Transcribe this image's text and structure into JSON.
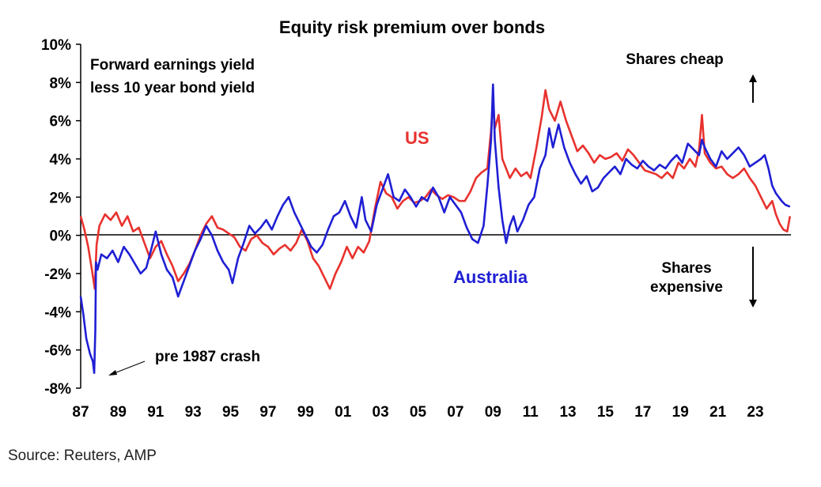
{
  "chart_data": {
    "type": "line",
    "title": "Equity risk premium over bonds",
    "subtitle_lines": [
      "Forward earnings yield",
      "less 10 year bond yield"
    ],
    "ylim": [
      -8,
      10
    ],
    "y_ticks": [
      -8,
      -6,
      -4,
      -2,
      0,
      2,
      4,
      6,
      8,
      10
    ],
    "y_tick_labels": [
      "-8%",
      "-6%",
      "-4%",
      "-2%",
      "0%",
      "2%",
      "4%",
      "6%",
      "8%",
      "10%"
    ],
    "xlim": [
      1987,
      2024.9
    ],
    "x_ticks": [
      1987,
      1989,
      1991,
      1993,
      1995,
      1997,
      1999,
      2001,
      2003,
      2005,
      2007,
      2009,
      2011,
      2013,
      2015,
      2017,
      2019,
      2021,
      2023
    ],
    "x_tick_labels": [
      "87",
      "89",
      "91",
      "93",
      "95",
      "97",
      "99",
      "01",
      "03",
      "05",
      "07",
      "09",
      "11",
      "13",
      "15",
      "17",
      "19",
      "21",
      "23"
    ],
    "grid": false,
    "series": [
      {
        "name": "US",
        "color": "#e8322e",
        "points": [
          [
            1987.0,
            1.0
          ],
          [
            1987.2,
            0.3
          ],
          [
            1987.4,
            -0.6
          ],
          [
            1987.6,
            -1.8
          ],
          [
            1987.75,
            -2.8
          ],
          [
            1987.85,
            -0.5
          ],
          [
            1988.0,
            0.5
          ],
          [
            1988.3,
            1.1
          ],
          [
            1988.6,
            0.8
          ],
          [
            1988.9,
            1.2
          ],
          [
            1989.2,
            0.5
          ],
          [
            1989.5,
            1.0
          ],
          [
            1989.8,
            0.2
          ],
          [
            1990.1,
            0.4
          ],
          [
            1990.4,
            -0.4
          ],
          [
            1990.7,
            -1.2
          ],
          [
            1991.0,
            -0.6
          ],
          [
            1991.3,
            -0.3
          ],
          [
            1991.6,
            -1.0
          ],
          [
            1991.9,
            -1.6
          ],
          [
            1992.2,
            -2.4
          ],
          [
            1992.5,
            -2.0
          ],
          [
            1992.8,
            -1.5
          ],
          [
            1993.1,
            -0.8
          ],
          [
            1993.4,
            0.0
          ],
          [
            1993.7,
            0.6
          ],
          [
            1994.0,
            1.0
          ],
          [
            1994.3,
            0.4
          ],
          [
            1994.6,
            0.3
          ],
          [
            1994.9,
            0.1
          ],
          [
            1995.2,
            -0.1
          ],
          [
            1995.5,
            -0.6
          ],
          [
            1995.8,
            -0.8
          ],
          [
            1996.1,
            -0.2
          ],
          [
            1996.4,
            0.0
          ],
          [
            1996.7,
            -0.4
          ],
          [
            1997.0,
            -0.6
          ],
          [
            1997.3,
            -1.0
          ],
          [
            1997.6,
            -0.7
          ],
          [
            1997.9,
            -0.5
          ],
          [
            1998.2,
            -0.8
          ],
          [
            1998.5,
            -0.4
          ],
          [
            1998.8,
            0.3
          ],
          [
            1999.1,
            -0.3
          ],
          [
            1999.4,
            -1.2
          ],
          [
            1999.7,
            -1.6
          ],
          [
            2000.0,
            -2.2
          ],
          [
            2000.3,
            -2.8
          ],
          [
            2000.6,
            -2.0
          ],
          [
            2000.9,
            -1.4
          ],
          [
            2001.2,
            -0.6
          ],
          [
            2001.5,
            -1.2
          ],
          [
            2001.8,
            -0.6
          ],
          [
            2002.1,
            -0.9
          ],
          [
            2002.4,
            -0.3
          ],
          [
            2002.7,
            1.4
          ],
          [
            2003.0,
            2.8
          ],
          [
            2003.3,
            2.2
          ],
          [
            2003.6,
            2.0
          ],
          [
            2003.9,
            1.4
          ],
          [
            2004.2,
            1.8
          ],
          [
            2004.5,
            2.0
          ],
          [
            2004.8,
            1.7
          ],
          [
            2005.1,
            1.8
          ],
          [
            2005.4,
            2.0
          ],
          [
            2005.7,
            2.4
          ],
          [
            2006.0,
            2.1
          ],
          [
            2006.3,
            1.9
          ],
          [
            2006.6,
            2.1
          ],
          [
            2006.9,
            2.0
          ],
          [
            2007.2,
            1.8
          ],
          [
            2007.5,
            1.8
          ],
          [
            2007.8,
            2.3
          ],
          [
            2008.1,
            3.0
          ],
          [
            2008.4,
            3.3
          ],
          [
            2008.7,
            3.5
          ],
          [
            2008.9,
            5.5
          ],
          [
            2009.0,
            7.2
          ],
          [
            2009.1,
            5.6
          ],
          [
            2009.3,
            6.3
          ],
          [
            2009.5,
            4.0
          ],
          [
            2009.7,
            3.5
          ],
          [
            2009.9,
            3.0
          ],
          [
            2010.2,
            3.5
          ],
          [
            2010.5,
            3.1
          ],
          [
            2010.8,
            3.3
          ],
          [
            2011.0,
            3.0
          ],
          [
            2011.3,
            4.5
          ],
          [
            2011.6,
            6.2
          ],
          [
            2011.8,
            7.6
          ],
          [
            2012.0,
            6.6
          ],
          [
            2012.3,
            6.0
          ],
          [
            2012.6,
            7.0
          ],
          [
            2012.9,
            6.0
          ],
          [
            2013.2,
            5.2
          ],
          [
            2013.5,
            4.4
          ],
          [
            2013.8,
            4.7
          ],
          [
            2014.1,
            4.3
          ],
          [
            2014.4,
            3.8
          ],
          [
            2014.7,
            4.2
          ],
          [
            2015.0,
            4.0
          ],
          [
            2015.3,
            4.1
          ],
          [
            2015.6,
            4.3
          ],
          [
            2015.9,
            3.9
          ],
          [
            2016.2,
            4.5
          ],
          [
            2016.5,
            4.2
          ],
          [
            2016.8,
            3.8
          ],
          [
            2017.1,
            3.4
          ],
          [
            2017.4,
            3.3
          ],
          [
            2017.7,
            3.2
          ],
          [
            2018.0,
            3.0
          ],
          [
            2018.3,
            3.3
          ],
          [
            2018.6,
            3.0
          ],
          [
            2018.9,
            3.8
          ],
          [
            2019.2,
            3.5
          ],
          [
            2019.5,
            4.0
          ],
          [
            2019.8,
            3.6
          ],
          [
            2020.0,
            4.5
          ],
          [
            2020.15,
            6.3
          ],
          [
            2020.3,
            4.3
          ],
          [
            2020.6,
            3.8
          ],
          [
            2020.9,
            3.5
          ],
          [
            2021.2,
            3.6
          ],
          [
            2021.5,
            3.2
          ],
          [
            2021.8,
            3.0
          ],
          [
            2022.1,
            3.2
          ],
          [
            2022.4,
            3.5
          ],
          [
            2022.7,
            3.0
          ],
          [
            2023.0,
            2.6
          ],
          [
            2023.3,
            2.0
          ],
          [
            2023.6,
            1.4
          ],
          [
            2023.9,
            1.8
          ],
          [
            2024.1,
            1.1
          ],
          [
            2024.3,
            0.6
          ],
          [
            2024.5,
            0.3
          ],
          [
            2024.7,
            0.2
          ],
          [
            2024.85,
            1.0
          ]
        ]
      },
      {
        "name": "Australia",
        "color": "#1f1fd4",
        "points": [
          [
            1987.0,
            -3.2
          ],
          [
            1987.15,
            -4.2
          ],
          [
            1987.3,
            -5.4
          ],
          [
            1987.5,
            -6.2
          ],
          [
            1987.65,
            -6.6
          ],
          [
            1987.72,
            -7.2
          ],
          [
            1987.78,
            -5.0
          ],
          [
            1987.82,
            -1.4
          ],
          [
            1987.9,
            -1.8
          ],
          [
            1988.1,
            -1.0
          ],
          [
            1988.4,
            -1.2
          ],
          [
            1988.7,
            -0.8
          ],
          [
            1989.0,
            -1.4
          ],
          [
            1989.3,
            -0.6
          ],
          [
            1989.6,
            -1.0
          ],
          [
            1989.9,
            -1.5
          ],
          [
            1990.2,
            -2.0
          ],
          [
            1990.5,
            -1.7
          ],
          [
            1990.8,
            -0.6
          ],
          [
            1991.0,
            0.2
          ],
          [
            1991.3,
            -1.0
          ],
          [
            1991.6,
            -1.8
          ],
          [
            1991.9,
            -2.2
          ],
          [
            1992.2,
            -3.2
          ],
          [
            1992.5,
            -2.4
          ],
          [
            1992.8,
            -1.6
          ],
          [
            1993.1,
            -0.8
          ],
          [
            1993.4,
            -0.2
          ],
          [
            1993.7,
            0.5
          ],
          [
            1994.0,
            0.0
          ],
          [
            1994.3,
            -0.8
          ],
          [
            1994.6,
            -1.4
          ],
          [
            1994.9,
            -1.8
          ],
          [
            1995.1,
            -2.5
          ],
          [
            1995.4,
            -1.2
          ],
          [
            1995.7,
            -0.4
          ],
          [
            1996.0,
            0.5
          ],
          [
            1996.3,
            0.1
          ],
          [
            1996.6,
            0.4
          ],
          [
            1996.9,
            0.8
          ],
          [
            1997.2,
            0.3
          ],
          [
            1997.5,
            1.0
          ],
          [
            1997.8,
            1.6
          ],
          [
            1998.1,
            2.0
          ],
          [
            1998.4,
            1.2
          ],
          [
            1998.7,
            0.6
          ],
          [
            1999.0,
            0.0
          ],
          [
            1999.3,
            -0.6
          ],
          [
            1999.6,
            -0.9
          ],
          [
            1999.9,
            -0.5
          ],
          [
            2000.2,
            0.3
          ],
          [
            2000.5,
            1.0
          ],
          [
            2000.8,
            1.2
          ],
          [
            2001.1,
            1.8
          ],
          [
            2001.4,
            1.0
          ],
          [
            2001.7,
            0.4
          ],
          [
            2002.0,
            2.0
          ],
          [
            2002.2,
            0.8
          ],
          [
            2002.5,
            0.2
          ],
          [
            2002.8,
            1.6
          ],
          [
            2003.1,
            2.4
          ],
          [
            2003.4,
            3.2
          ],
          [
            2003.7,
            2.0
          ],
          [
            2004.0,
            1.8
          ],
          [
            2004.3,
            2.4
          ],
          [
            2004.6,
            2.0
          ],
          [
            2004.9,
            1.5
          ],
          [
            2005.2,
            2.0
          ],
          [
            2005.5,
            1.8
          ],
          [
            2005.8,
            2.5
          ],
          [
            2006.1,
            2.0
          ],
          [
            2006.4,
            1.2
          ],
          [
            2006.7,
            2.0
          ],
          [
            2007.0,
            1.6
          ],
          [
            2007.3,
            1.2
          ],
          [
            2007.6,
            0.4
          ],
          [
            2007.9,
            -0.2
          ],
          [
            2008.2,
            -0.4
          ],
          [
            2008.5,
            0.5
          ],
          [
            2008.7,
            2.6
          ],
          [
            2008.9,
            5.0
          ],
          [
            2009.0,
            7.9
          ],
          [
            2009.1,
            5.0
          ],
          [
            2009.3,
            2.5
          ],
          [
            2009.5,
            0.8
          ],
          [
            2009.7,
            -0.4
          ],
          [
            2009.9,
            0.5
          ],
          [
            2010.1,
            1.0
          ],
          [
            2010.3,
            0.2
          ],
          [
            2010.6,
            0.8
          ],
          [
            2010.9,
            1.6
          ],
          [
            2011.2,
            2.0
          ],
          [
            2011.5,
            3.5
          ],
          [
            2011.8,
            4.2
          ],
          [
            2012.0,
            5.6
          ],
          [
            2012.2,
            4.6
          ],
          [
            2012.5,
            5.8
          ],
          [
            2012.8,
            4.6
          ],
          [
            2013.1,
            3.8
          ],
          [
            2013.4,
            3.2
          ],
          [
            2013.7,
            2.7
          ],
          [
            2014.0,
            3.1
          ],
          [
            2014.3,
            2.3
          ],
          [
            2014.6,
            2.5
          ],
          [
            2014.9,
            3.0
          ],
          [
            2015.2,
            3.3
          ],
          [
            2015.5,
            3.6
          ],
          [
            2015.8,
            3.2
          ],
          [
            2016.1,
            4.0
          ],
          [
            2016.4,
            3.7
          ],
          [
            2016.7,
            3.5
          ],
          [
            2017.0,
            3.9
          ],
          [
            2017.3,
            3.6
          ],
          [
            2017.6,
            3.4
          ],
          [
            2017.9,
            3.7
          ],
          [
            2018.2,
            3.5
          ],
          [
            2018.5,
            3.9
          ],
          [
            2018.8,
            4.2
          ],
          [
            2019.1,
            3.8
          ],
          [
            2019.4,
            4.8
          ],
          [
            2019.7,
            4.5
          ],
          [
            2020.0,
            4.2
          ],
          [
            2020.15,
            5.0
          ],
          [
            2020.3,
            4.6
          ],
          [
            2020.6,
            4.0
          ],
          [
            2020.9,
            3.6
          ],
          [
            2021.2,
            4.4
          ],
          [
            2021.5,
            4.0
          ],
          [
            2021.8,
            4.3
          ],
          [
            2022.1,
            4.6
          ],
          [
            2022.4,
            4.2
          ],
          [
            2022.7,
            3.6
          ],
          [
            2023.0,
            3.8
          ],
          [
            2023.3,
            4.0
          ],
          [
            2023.5,
            4.2
          ],
          [
            2023.7,
            3.5
          ],
          [
            2023.9,
            2.6
          ],
          [
            2024.1,
            2.2
          ],
          [
            2024.4,
            1.8
          ],
          [
            2024.6,
            1.6
          ],
          [
            2024.85,
            1.5
          ]
        ]
      }
    ],
    "annotations": {
      "us_label": "US",
      "australia_label": "Australia",
      "shares_cheap": "Shares cheap",
      "shares_expensive_lines": [
        "Shares",
        "expensive"
      ],
      "pre_crash": "pre 1987 crash"
    }
  },
  "source": "Source: Reuters, AMP"
}
